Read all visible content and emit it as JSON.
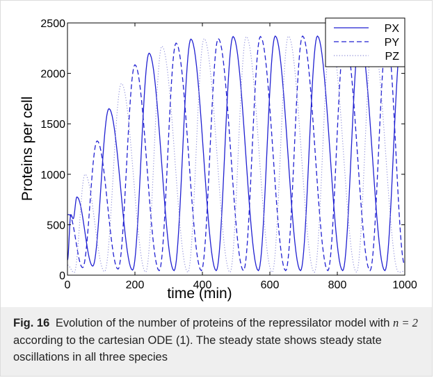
{
  "figure": {
    "caption_label": "Fig. 16",
    "caption_before_math": "Evolution of the number of proteins of the repressilator model with",
    "caption_math": "n = 2",
    "caption_after_math": "according to the cartesian ODE (1). The steady state shows steady state oscillations in all three species"
  },
  "chart_data": {
    "type": "line",
    "xlabel": "time (min)",
    "ylabel": "Proteins per cell",
    "xlim": [
      0,
      1000
    ],
    "ylim": [
      0,
      2500
    ],
    "xticks": [
      0,
      200,
      400,
      600,
      800,
      1000
    ],
    "yticks": [
      0,
      500,
      1000,
      1500,
      2000,
      2500
    ],
    "grid": false,
    "legend_position": "top-right",
    "series": [
      {
        "name": "PX",
        "style": "solid",
        "color": "#1f1fd1",
        "start_value": 150,
        "peaks": [
          [
            10,
            600
          ],
          [
            28,
            775
          ],
          [
            123,
            1650
          ],
          [
            242,
            2200
          ],
          [
            366,
            2340
          ],
          [
            491,
            2365
          ],
          [
            616,
            2370
          ],
          [
            741,
            2370
          ],
          [
            866,
            2370
          ],
          [
            991,
            2370
          ]
        ],
        "troughs": [
          [
            17,
            560
          ],
          [
            75,
            90
          ],
          [
            193,
            50
          ],
          [
            316,
            45
          ],
          [
            441,
            45
          ],
          [
            566,
            45
          ],
          [
            691,
            45
          ],
          [
            816,
            45
          ],
          [
            941,
            45
          ]
        ]
      },
      {
        "name": "PY",
        "style": "dashed",
        "color": "#1f1fd1",
        "start_value": 600,
        "peaks": [
          [
            5,
            600
          ],
          [
            88,
            1330
          ],
          [
            200,
            2085
          ],
          [
            322,
            2300
          ],
          [
            447,
            2345
          ],
          [
            572,
            2365
          ],
          [
            697,
            2370
          ],
          [
            822,
            2370
          ],
          [
            947,
            2370
          ]
        ],
        "troughs": [
          [
            45,
            75
          ],
          [
            150,
            60
          ],
          [
            272,
            45
          ],
          [
            397,
            45
          ],
          [
            522,
            45
          ],
          [
            647,
            45
          ],
          [
            772,
            45
          ],
          [
            897,
            45
          ],
          [
            1000,
            100
          ]
        ]
      },
      {
        "name": "PZ",
        "style": "dotted",
        "color": "#8a8ad8",
        "start_value": 100,
        "peaks": [
          [
            52,
            1000
          ],
          [
            160,
            1900
          ],
          [
            280,
            2270
          ],
          [
            405,
            2345
          ],
          [
            530,
            2365
          ],
          [
            655,
            2370
          ],
          [
            780,
            2370
          ],
          [
            905,
            2370
          ]
        ],
        "troughs": [
          [
            20,
            25
          ],
          [
            110,
            35
          ],
          [
            232,
            30
          ],
          [
            357,
            28
          ],
          [
            482,
            28
          ],
          [
            607,
            28
          ],
          [
            732,
            28
          ],
          [
            857,
            28
          ],
          [
            982,
            28
          ],
          [
            1000,
            40
          ]
        ]
      }
    ]
  }
}
